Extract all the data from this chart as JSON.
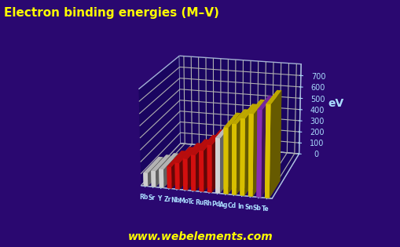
{
  "title": "Electron binding energies (M–V)",
  "ylabel": "eV",
  "watermark": "www.webelements.com",
  "bg_color": "#2a0870",
  "elements": [
    "Rb",
    "Sr",
    "Y",
    "Zr",
    "Nb",
    "Mo",
    "Tc",
    "Ru",
    "Rh",
    "Pd",
    "Ag",
    "Cd",
    "In",
    "Sn",
    "Sb",
    "Te"
  ],
  "values": [
    111,
    134,
    155,
    182,
    220,
    260,
    298,
    340,
    393,
    454,
    546,
    580,
    630,
    672,
    710,
    759
  ],
  "colors": [
    "#e8e8e8",
    "#e8e8e8",
    "#e8e8e8",
    "#ee1111",
    "#ee1111",
    "#ee1111",
    "#ee1111",
    "#ee1111",
    "#ee1111",
    "#f0f0f0",
    "#f5d800",
    "#f5d800",
    "#f5d800",
    "#f5d800",
    "#9933cc",
    "#f5d800"
  ],
  "dark_colors": [
    "#aaaaaa",
    "#aaaaaa",
    "#aaaaaa",
    "#991111",
    "#991111",
    "#991111",
    "#991111",
    "#991111",
    "#991111",
    "#aaaaaa",
    "#c9aa00",
    "#c9aa00",
    "#c9aa00",
    "#c9aa00",
    "#661199",
    "#c9aa00"
  ],
  "ylim": [
    0,
    800
  ],
  "yticks": [
    0,
    100,
    200,
    300,
    400,
    500,
    600,
    700
  ],
  "title_color": "#ffff00",
  "tick_color": "#aaddff",
  "grid_color": "#8899cc",
  "axis_label_color": "#aaddff",
  "watermark_color": "#ffff00",
  "floor_color": "#2255cc",
  "floor_dark": "#1133aa",
  "wall_color": "#1a0560",
  "grid_line_color": "#aabbdd"
}
